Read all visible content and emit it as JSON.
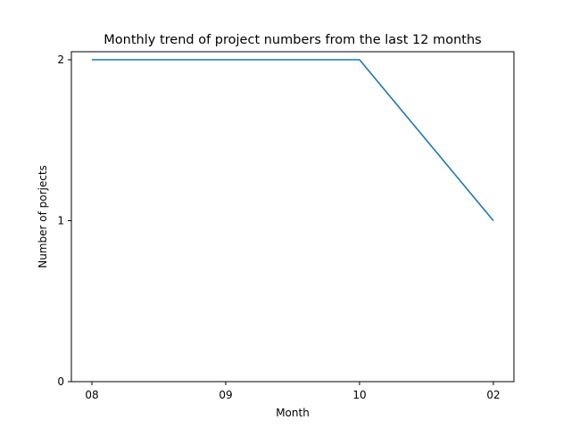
{
  "chart_data": {
    "type": "line",
    "title": "Monthly trend of project numbers from the last 12 months",
    "xlabel": "Month",
    "ylabel": "Number of porjects",
    "categories": [
      "08",
      "09",
      "10",
      "02"
    ],
    "series": [
      {
        "values": [
          2,
          2,
          2,
          1
        ],
        "color": "#1f77b4"
      }
    ],
    "ylim": [
      0,
      2
    ],
    "yticks": [
      "0",
      "1",
      "2"
    ],
    "grid": false,
    "legend": "none"
  }
}
